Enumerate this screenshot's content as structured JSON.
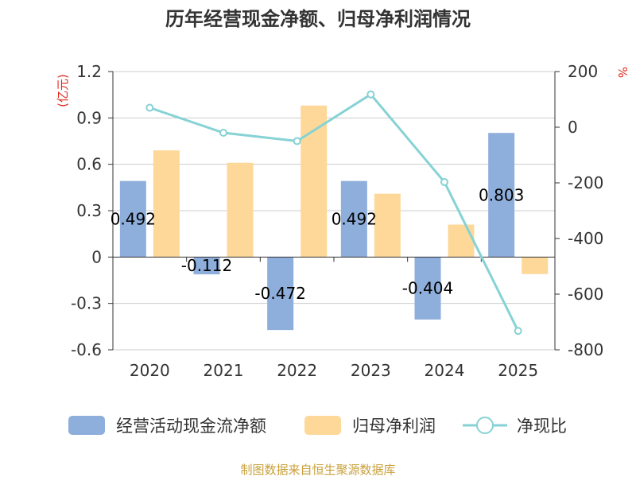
{
  "chart_data": {
    "type": "bar",
    "title": "历年经营现金净额、归母净利润情况",
    "categories": [
      "2020",
      "2021",
      "2022",
      "2023",
      "2024",
      "2025"
    ],
    "left_axis": {
      "unit": "(亿元)",
      "ylim": [
        -0.6,
        1.2
      ],
      "ticks": [
        1.2,
        0.9,
        0.6,
        0.3,
        0,
        -0.3,
        -0.6
      ],
      "tick_labels": [
        "1.2",
        "0.9",
        "0.6",
        "0.3",
        "0",
        "-0.3",
        "-0.6"
      ]
    },
    "right_axis": {
      "unit": "%",
      "ylim": [
        -800,
        200
      ],
      "ticks": [
        200,
        0,
        -200,
        -400,
        -600,
        -800
      ],
      "tick_labels": [
        "200",
        "0",
        "-200",
        "-400",
        "-600",
        "-800"
      ]
    },
    "series": [
      {
        "name": "经营活动现金流净额",
        "type": "bar",
        "axis": "left",
        "color": "#8eaedb",
        "values": [
          0.492,
          -0.112,
          -0.472,
          0.492,
          -0.404,
          0.803
        ],
        "labels": [
          "0.492",
          "-0.112",
          "-0.472",
          "0.492",
          "-0.404",
          "0.803"
        ]
      },
      {
        "name": "归母净利润",
        "type": "bar",
        "axis": "left",
        "color": "#fdd899",
        "values": [
          0.69,
          0.61,
          0.98,
          0.41,
          0.21,
          -0.11
        ]
      },
      {
        "name": "净现比",
        "type": "line",
        "axis": "right",
        "color": "#86d2d4",
        "values": [
          70,
          -20,
          -50,
          118,
          -197,
          -732
        ]
      }
    ],
    "grid": true,
    "legend_position": "bottom"
  },
  "colors": {
    "left_unit": "#e0261c",
    "right_unit": "#e0261c",
    "source": "#c9a13c",
    "grid": "#cccccc",
    "axis": "#333333"
  },
  "source": "制图数据来自恒生聚源数据库"
}
